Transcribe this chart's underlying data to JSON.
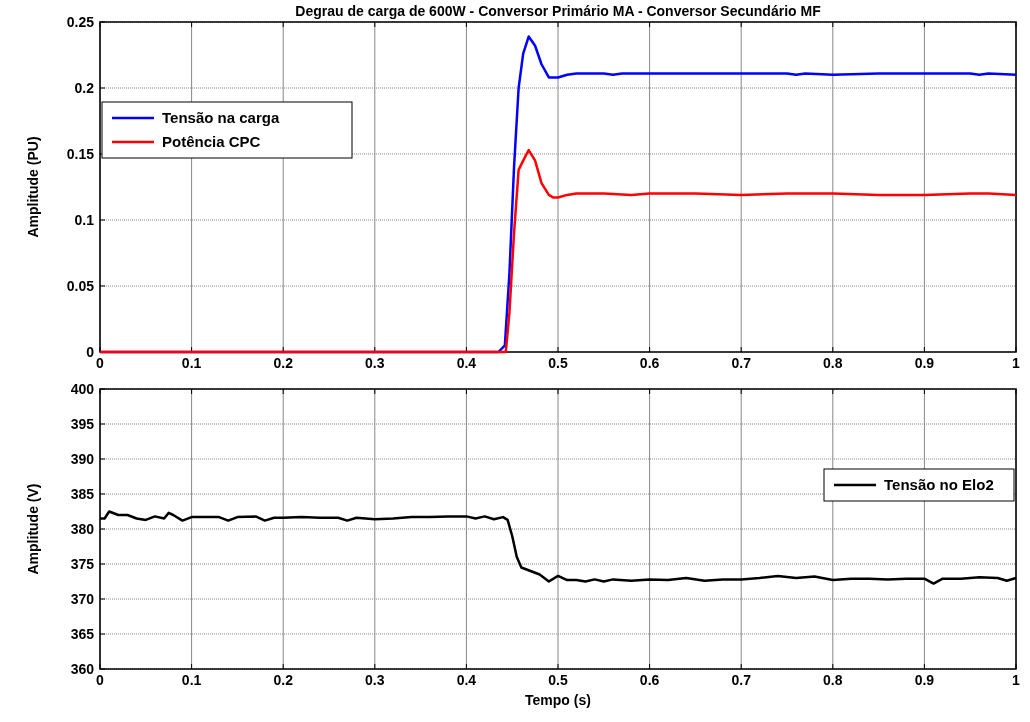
{
  "chart_data": [
    {
      "type": "line",
      "title": "Degrau de carga de 600W - Conversor Primário MA - Conversor Secundário MF",
      "ylabel": "Amplitude (PU)",
      "xlim": [
        0,
        1
      ],
      "ylim": [
        0,
        0.25
      ],
      "xticks": [
        0,
        0.1,
        0.2,
        0.3,
        0.4,
        0.5,
        0.6,
        0.7,
        0.8,
        0.9,
        1
      ],
      "yticks": [
        0,
        0.05,
        0.1,
        0.15,
        0.2,
        0.25
      ],
      "grid": true,
      "legend": "top left",
      "series": [
        {
          "name": "Tensão na carga",
          "color": "#0000ff",
          "x": [
            0,
            0.435,
            0.442,
            0.447,
            0.452,
            0.457,
            0.462,
            0.468,
            0.475,
            0.482,
            0.49,
            0.5,
            0.51,
            0.52,
            0.55,
            0.56,
            0.57,
            0.6,
            0.65,
            0.7,
            0.75,
            0.76,
            0.77,
            0.8,
            0.85,
            0.9,
            0.95,
            0.96,
            0.97,
            1
          ],
          "values": [
            0,
            0,
            0.005,
            0.06,
            0.14,
            0.2,
            0.226,
            0.239,
            0.232,
            0.218,
            0.208,
            0.208,
            0.21,
            0.211,
            0.211,
            0.21,
            0.211,
            0.211,
            0.211,
            0.211,
            0.211,
            0.21,
            0.211,
            0.21,
            0.211,
            0.211,
            0.211,
            0.21,
            0.211,
            0.21
          ]
        },
        {
          "name": "Potência CPC",
          "color": "#ff0000",
          "x": [
            0,
            0.443,
            0.447,
            0.452,
            0.457,
            0.462,
            0.468,
            0.475,
            0.482,
            0.49,
            0.495,
            0.5,
            0.51,
            0.52,
            0.55,
            0.58,
            0.6,
            0.65,
            0.7,
            0.75,
            0.8,
            0.85,
            0.9,
            0.95,
            0.97,
            1
          ],
          "values": [
            0,
            0,
            0.03,
            0.09,
            0.138,
            0.145,
            0.153,
            0.145,
            0.128,
            0.119,
            0.117,
            0.117,
            0.119,
            0.12,
            0.12,
            0.119,
            0.12,
            0.12,
            0.119,
            0.12,
            0.12,
            0.119,
            0.119,
            0.12,
            0.12,
            0.119
          ]
        }
      ]
    },
    {
      "type": "line",
      "xlabel": "Tempo (s)",
      "ylabel": "Amplitude (V)",
      "xlim": [
        0,
        1
      ],
      "ylim": [
        360,
        400
      ],
      "xticks": [
        0,
        0.1,
        0.2,
        0.3,
        0.4,
        0.5,
        0.6,
        0.7,
        0.8,
        0.9,
        1
      ],
      "yticks": [
        360,
        365,
        370,
        375,
        380,
        385,
        390,
        395,
        400
      ],
      "grid": true,
      "legend": "right",
      "series": [
        {
          "name": "Tensão no Elo2",
          "color": "#000000",
          "x": [
            0,
            0.005,
            0.01,
            0.02,
            0.03,
            0.04,
            0.05,
            0.06,
            0.07,
            0.075,
            0.08,
            0.09,
            0.1,
            0.11,
            0.13,
            0.14,
            0.15,
            0.17,
            0.18,
            0.19,
            0.2,
            0.22,
            0.24,
            0.26,
            0.27,
            0.28,
            0.3,
            0.32,
            0.34,
            0.36,
            0.38,
            0.4,
            0.41,
            0.42,
            0.43,
            0.44,
            0.445,
            0.45,
            0.455,
            0.46,
            0.47,
            0.48,
            0.49,
            0.5,
            0.51,
            0.52,
            0.53,
            0.54,
            0.55,
            0.56,
            0.58,
            0.6,
            0.62,
            0.64,
            0.66,
            0.68,
            0.7,
            0.72,
            0.74,
            0.76,
            0.78,
            0.8,
            0.82,
            0.84,
            0.86,
            0.88,
            0.9,
            0.91,
            0.92,
            0.94,
            0.96,
            0.98,
            0.99,
            1
          ],
          "values": [
            381.5,
            381.5,
            382.5,
            382,
            382,
            381.5,
            381.3,
            381.8,
            381.5,
            382.3,
            382,
            381.2,
            381.7,
            381.7,
            381.7,
            381.2,
            381.7,
            381.8,
            381.2,
            381.6,
            381.6,
            381.7,
            381.6,
            381.6,
            381.2,
            381.6,
            381.4,
            381.5,
            381.7,
            381.7,
            381.8,
            381.8,
            381.5,
            381.8,
            381.4,
            381.7,
            381.3,
            379,
            376,
            374.5,
            374,
            373.5,
            372.5,
            373.3,
            372.7,
            372.7,
            372.5,
            372.8,
            372.5,
            372.8,
            372.6,
            372.8,
            372.7,
            373,
            372.6,
            372.8,
            372.8,
            373,
            373.3,
            373,
            373.2,
            372.7,
            372.9,
            372.9,
            372.8,
            372.9,
            372.9,
            372.2,
            372.9,
            372.9,
            373.1,
            373,
            372.6,
            373
          ]
        }
      ]
    }
  ]
}
